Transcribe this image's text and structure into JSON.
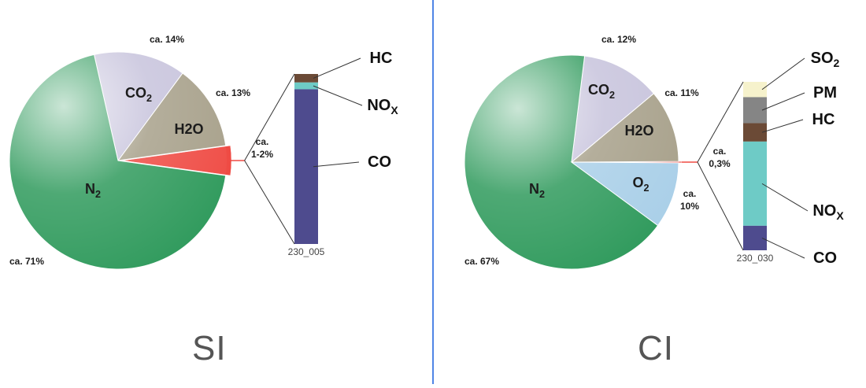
{
  "chart_data": [
    {
      "type": "pie",
      "title": "SI",
      "slices": [
        {
          "label": "N2",
          "value": 71,
          "pct_text": "ca. 71%",
          "color": "#2f9a5c",
          "pct_position": "bottom-left"
        },
        {
          "label": "CO2",
          "value": 14,
          "pct_text": "ca. 14%",
          "color": "#c7c3dc",
          "pct_position": "top"
        },
        {
          "label": "H2O",
          "value": 13,
          "pct_text": "ca. 13%",
          "color": "#a7a08a",
          "pct_position": "right"
        },
        {
          "label": "",
          "value": 2,
          "pct_text": "ca. 1-2%",
          "color": "#ef4b44",
          "pct_position": "right",
          "exploded": true
        }
      ],
      "breakdown": {
        "code": "230_005",
        "segments": [
          {
            "label": "HC",
            "value": 10,
            "color": "#6b4a36"
          },
          {
            "label": "NOX",
            "value": 8,
            "color": "#6ecbc6"
          },
          {
            "label": "CO",
            "value": 182,
            "color": "#4e4b8e"
          }
        ]
      }
    },
    {
      "type": "pie",
      "title": "CI",
      "slices": [
        {
          "label": "N2",
          "value": 67,
          "pct_text": "ca. 67%",
          "color": "#2f9a5c",
          "pct_position": "bottom-left"
        },
        {
          "label": "CO2",
          "value": 12,
          "pct_text": "ca. 12%",
          "color": "#c7c3dc",
          "pct_position": "top"
        },
        {
          "label": "H2O",
          "value": 11,
          "pct_text": "ca. 11%",
          "color": "#a7a08a",
          "pct_position": "right"
        },
        {
          "label": "",
          "value": 0.3,
          "pct_text": "ca. 0,3%",
          "color": "#ef4b44",
          "pct_position": "right",
          "exploded": true
        },
        {
          "label": "O2",
          "value": 10,
          "pct_text": "ca. 10%",
          "color": "#a9cfe8",
          "pct_position": "right"
        }
      ],
      "breakdown": {
        "code": "230_030",
        "segments": [
          {
            "label": "SO2",
            "value": 10,
            "color": "#f6f2cc"
          },
          {
            "label": "PM",
            "value": 17,
            "color": "#858585"
          },
          {
            "label": "HC",
            "value": 12,
            "color": "#6b4a36"
          },
          {
            "label": "NOX",
            "value": 55,
            "color": "#6ecbc6"
          },
          {
            "label": "CO",
            "value": 16,
            "color": "#4e4b8e"
          }
        ]
      }
    }
  ]
}
